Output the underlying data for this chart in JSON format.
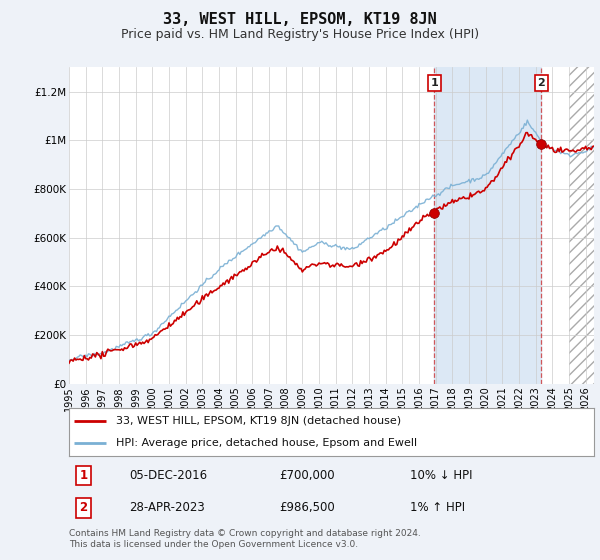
{
  "title": "33, WEST HILL, EPSOM, KT19 8JN",
  "subtitle": "Price paid vs. HM Land Registry's House Price Index (HPI)",
  "ylabel_ticks": [
    "£0",
    "£200K",
    "£400K",
    "£600K",
    "£800K",
    "£1M",
    "£1.2M"
  ],
  "ytick_vals": [
    0,
    200000,
    400000,
    600000,
    800000,
    1000000,
    1200000
  ],
  "ylim": [
    0,
    1300000
  ],
  "xlim_left": 1995,
  "xlim_right": 2026.5,
  "transaction1_x": 2016.92,
  "transaction1_y": 700000,
  "transaction2_x": 2023.33,
  "transaction2_y": 986500,
  "line_color_property": "#cc0000",
  "line_color_hpi": "#7ab0d4",
  "background_color": "#eef2f8",
  "plot_bg_color": "#ffffff",
  "highlight_bg_color": "#dce8f5",
  "grid_color": "#cccccc",
  "dashed_line_color": "#cc3333",
  "legend_label_property": "33, WEST HILL, EPSOM, KT19 8JN (detached house)",
  "legend_label_hpi": "HPI: Average price, detached house, Epsom and Ewell",
  "annotation1_date": "05-DEC-2016",
  "annotation1_price": "£700,000",
  "annotation1_hpi": "10% ↓ HPI",
  "annotation2_date": "28-APR-2023",
  "annotation2_price": "£986,500",
  "annotation2_hpi": "1% ↑ HPI",
  "footer": "Contains HM Land Registry data © Crown copyright and database right 2024.\nThis data is licensed under the Open Government Licence v3.0.",
  "future_start": 2025.0,
  "hatch_end": 2026.5,
  "title_fontsize": 11,
  "subtitle_fontsize": 9,
  "tick_fontsize": 7.5
}
